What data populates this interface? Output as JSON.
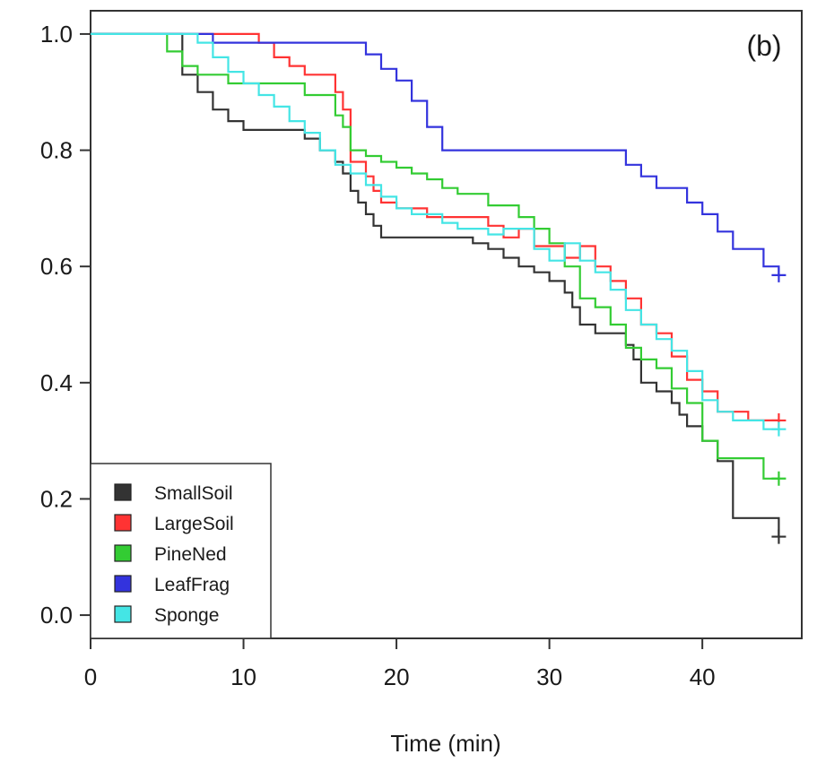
{
  "chart_data": {
    "type": "line",
    "subtype": "step",
    "annotation": "(b)",
    "xlabel": "Time (min)",
    "ylabel": "",
    "xlim": [
      0,
      46.5
    ],
    "ylim": [
      -0.04,
      1.04
    ],
    "xticks": [
      0,
      10,
      20,
      30,
      40
    ],
    "xtick_labels": [
      "0",
      "10",
      "20",
      "30",
      "40"
    ],
    "yticks": [
      0.0,
      0.2,
      0.4,
      0.6,
      0.8,
      1.0
    ],
    "ytick_labels": [
      "0.0",
      "0.2",
      "0.4",
      "0.6",
      "0.8",
      "1.0"
    ],
    "grid": false,
    "legend_position": "bottom-left",
    "series": [
      {
        "name": "SmallSoil",
        "color": "#333333",
        "points": [
          [
            0,
            1.0
          ],
          [
            6,
            1.0
          ],
          [
            6,
            0.93
          ],
          [
            7,
            0.93
          ],
          [
            7,
            0.9
          ],
          [
            8,
            0.9
          ],
          [
            8,
            0.87
          ],
          [
            9,
            0.87
          ],
          [
            9,
            0.85
          ],
          [
            10,
            0.85
          ],
          [
            10,
            0.835
          ],
          [
            14,
            0.835
          ],
          [
            14,
            0.82
          ],
          [
            15,
            0.82
          ],
          [
            15,
            0.8
          ],
          [
            16,
            0.8
          ],
          [
            16,
            0.78
          ],
          [
            16.5,
            0.78
          ],
          [
            16.5,
            0.76
          ],
          [
            17,
            0.76
          ],
          [
            17,
            0.73
          ],
          [
            17.5,
            0.73
          ],
          [
            17.5,
            0.71
          ],
          [
            18,
            0.71
          ],
          [
            18,
            0.69
          ],
          [
            18.5,
            0.69
          ],
          [
            18.5,
            0.67
          ],
          [
            19,
            0.67
          ],
          [
            19,
            0.65
          ],
          [
            25,
            0.65
          ],
          [
            25,
            0.64
          ],
          [
            26,
            0.64
          ],
          [
            26,
            0.63
          ],
          [
            27,
            0.63
          ],
          [
            27,
            0.615
          ],
          [
            28,
            0.615
          ],
          [
            28,
            0.6
          ],
          [
            29,
            0.6
          ],
          [
            29,
            0.59
          ],
          [
            30,
            0.59
          ],
          [
            30,
            0.575
          ],
          [
            31,
            0.575
          ],
          [
            31,
            0.555
          ],
          [
            31.5,
            0.555
          ],
          [
            31.5,
            0.53
          ],
          [
            32,
            0.53
          ],
          [
            32,
            0.5
          ],
          [
            33,
            0.5
          ],
          [
            33,
            0.485
          ],
          [
            35,
            0.485
          ],
          [
            35,
            0.465
          ],
          [
            35.5,
            0.465
          ],
          [
            35.5,
            0.44
          ],
          [
            36,
            0.44
          ],
          [
            36,
            0.4
          ],
          [
            37,
            0.4
          ],
          [
            37,
            0.385
          ],
          [
            38,
            0.385
          ],
          [
            38,
            0.365
          ],
          [
            38.5,
            0.365
          ],
          [
            38.5,
            0.345
          ],
          [
            39,
            0.345
          ],
          [
            39,
            0.325
          ],
          [
            40,
            0.325
          ],
          [
            40,
            0.3
          ],
          [
            41,
            0.3
          ],
          [
            41,
            0.265
          ],
          [
            42,
            0.265
          ],
          [
            42,
            0.167
          ],
          [
            45,
            0.167
          ],
          [
            45,
            0.135
          ]
        ],
        "censor": [
          [
            45,
            0.135
          ]
        ]
      },
      {
        "name": "LargeSoil",
        "color": "#ff3333",
        "points": [
          [
            0,
            1.0
          ],
          [
            11,
            1.0
          ],
          [
            11,
            0.985
          ],
          [
            12,
            0.985
          ],
          [
            12,
            0.96
          ],
          [
            13,
            0.96
          ],
          [
            13,
            0.945
          ],
          [
            14,
            0.945
          ],
          [
            14,
            0.93
          ],
          [
            16,
            0.93
          ],
          [
            16,
            0.9
          ],
          [
            16.5,
            0.9
          ],
          [
            16.5,
            0.87
          ],
          [
            17,
            0.87
          ],
          [
            17,
            0.78
          ],
          [
            18,
            0.78
          ],
          [
            18,
            0.755
          ],
          [
            18.5,
            0.755
          ],
          [
            18.5,
            0.73
          ],
          [
            19,
            0.73
          ],
          [
            19,
            0.71
          ],
          [
            20,
            0.71
          ],
          [
            20,
            0.7
          ],
          [
            22,
            0.7
          ],
          [
            22,
            0.685
          ],
          [
            26,
            0.685
          ],
          [
            26,
            0.67
          ],
          [
            27,
            0.67
          ],
          [
            27,
            0.65
          ],
          [
            28,
            0.65
          ],
          [
            28,
            0.665
          ],
          [
            29,
            0.665
          ],
          [
            29,
            0.635
          ],
          [
            31,
            0.635
          ],
          [
            31,
            0.615
          ],
          [
            32,
            0.615
          ],
          [
            32,
            0.635
          ],
          [
            33,
            0.635
          ],
          [
            33,
            0.6
          ],
          [
            34,
            0.6
          ],
          [
            34,
            0.575
          ],
          [
            35,
            0.575
          ],
          [
            35,
            0.545
          ],
          [
            36,
            0.545
          ],
          [
            36,
            0.5
          ],
          [
            37,
            0.5
          ],
          [
            37,
            0.485
          ],
          [
            38,
            0.485
          ],
          [
            38,
            0.445
          ],
          [
            39,
            0.445
          ],
          [
            39,
            0.405
          ],
          [
            40,
            0.405
          ],
          [
            40,
            0.385
          ],
          [
            41,
            0.385
          ],
          [
            41,
            0.35
          ],
          [
            43,
            0.35
          ],
          [
            43,
            0.335
          ],
          [
            45,
            0.335
          ]
        ],
        "censor": [
          [
            45,
            0.335
          ]
        ]
      },
      {
        "name": "PineNed",
        "color": "#33cc33",
        "points": [
          [
            0,
            1.0
          ],
          [
            5,
            1.0
          ],
          [
            5,
            0.97
          ],
          [
            6,
            0.97
          ],
          [
            6,
            0.945
          ],
          [
            7,
            0.945
          ],
          [
            7,
            0.93
          ],
          [
            9,
            0.93
          ],
          [
            9,
            0.915
          ],
          [
            14,
            0.915
          ],
          [
            14,
            0.895
          ],
          [
            16,
            0.895
          ],
          [
            16,
            0.86
          ],
          [
            16.5,
            0.86
          ],
          [
            16.5,
            0.84
          ],
          [
            17,
            0.84
          ],
          [
            17,
            0.8
          ],
          [
            18,
            0.8
          ],
          [
            18,
            0.79
          ],
          [
            19,
            0.79
          ],
          [
            19,
            0.78
          ],
          [
            20,
            0.78
          ],
          [
            20,
            0.77
          ],
          [
            21,
            0.77
          ],
          [
            21,
            0.76
          ],
          [
            22,
            0.76
          ],
          [
            22,
            0.75
          ],
          [
            23,
            0.75
          ],
          [
            23,
            0.735
          ],
          [
            24,
            0.735
          ],
          [
            24,
            0.725
          ],
          [
            26,
            0.725
          ],
          [
            26,
            0.705
          ],
          [
            28,
            0.705
          ],
          [
            28,
            0.685
          ],
          [
            29,
            0.685
          ],
          [
            29,
            0.665
          ],
          [
            30,
            0.665
          ],
          [
            30,
            0.64
          ],
          [
            31,
            0.64
          ],
          [
            31,
            0.6
          ],
          [
            32,
            0.6
          ],
          [
            32,
            0.545
          ],
          [
            33,
            0.545
          ],
          [
            33,
            0.53
          ],
          [
            34,
            0.53
          ],
          [
            34,
            0.5
          ],
          [
            35,
            0.5
          ],
          [
            35,
            0.46
          ],
          [
            36,
            0.46
          ],
          [
            36,
            0.44
          ],
          [
            37,
            0.44
          ],
          [
            37,
            0.425
          ],
          [
            38,
            0.425
          ],
          [
            38,
            0.39
          ],
          [
            39,
            0.39
          ],
          [
            39,
            0.365
          ],
          [
            40,
            0.365
          ],
          [
            40,
            0.3
          ],
          [
            41,
            0.3
          ],
          [
            41,
            0.27
          ],
          [
            44,
            0.27
          ],
          [
            44,
            0.235
          ],
          [
            45,
            0.235
          ]
        ],
        "censor": [
          [
            45,
            0.235
          ]
        ]
      },
      {
        "name": "LeafFrag",
        "color": "#3333dd",
        "points": [
          [
            0,
            1.0
          ],
          [
            8,
            1.0
          ],
          [
            8,
            0.985
          ],
          [
            18,
            0.985
          ],
          [
            18,
            0.965
          ],
          [
            19,
            0.965
          ],
          [
            19,
            0.94
          ],
          [
            20,
            0.94
          ],
          [
            20,
            0.92
          ],
          [
            21,
            0.92
          ],
          [
            21,
            0.885
          ],
          [
            22,
            0.885
          ],
          [
            22,
            0.84
          ],
          [
            23,
            0.84
          ],
          [
            23,
            0.8
          ],
          [
            35,
            0.8
          ],
          [
            35,
            0.775
          ],
          [
            36,
            0.775
          ],
          [
            36,
            0.755
          ],
          [
            37,
            0.755
          ],
          [
            37,
            0.735
          ],
          [
            39,
            0.735
          ],
          [
            39,
            0.71
          ],
          [
            40,
            0.71
          ],
          [
            40,
            0.69
          ],
          [
            41,
            0.69
          ],
          [
            41,
            0.66
          ],
          [
            42,
            0.66
          ],
          [
            42,
            0.63
          ],
          [
            44,
            0.63
          ],
          [
            44,
            0.6
          ],
          [
            45,
            0.6
          ],
          [
            45,
            0.585
          ]
        ],
        "censor": [
          [
            45,
            0.585
          ]
        ]
      },
      {
        "name": "Sponge",
        "color": "#44e5e5",
        "points": [
          [
            0,
            1.0
          ],
          [
            7,
            1.0
          ],
          [
            7,
            0.985
          ],
          [
            8,
            0.985
          ],
          [
            8,
            0.96
          ],
          [
            9,
            0.96
          ],
          [
            9,
            0.935
          ],
          [
            10,
            0.935
          ],
          [
            10,
            0.915
          ],
          [
            11,
            0.915
          ],
          [
            11,
            0.895
          ],
          [
            12,
            0.895
          ],
          [
            12,
            0.875
          ],
          [
            13,
            0.875
          ],
          [
            13,
            0.85
          ],
          [
            14,
            0.85
          ],
          [
            14,
            0.83
          ],
          [
            15,
            0.83
          ],
          [
            15,
            0.8
          ],
          [
            16,
            0.8
          ],
          [
            16,
            0.775
          ],
          [
            17,
            0.775
          ],
          [
            17,
            0.76
          ],
          [
            18,
            0.76
          ],
          [
            18,
            0.74
          ],
          [
            19,
            0.74
          ],
          [
            19,
            0.72
          ],
          [
            20,
            0.72
          ],
          [
            20,
            0.7
          ],
          [
            21,
            0.7
          ],
          [
            21,
            0.69
          ],
          [
            23,
            0.69
          ],
          [
            23,
            0.675
          ],
          [
            24,
            0.675
          ],
          [
            24,
            0.665
          ],
          [
            26,
            0.665
          ],
          [
            26,
            0.655
          ],
          [
            27,
            0.655
          ],
          [
            27,
            0.665
          ],
          [
            29,
            0.665
          ],
          [
            29,
            0.63
          ],
          [
            30,
            0.63
          ],
          [
            30,
            0.61
          ],
          [
            31,
            0.61
          ],
          [
            31,
            0.64
          ],
          [
            32,
            0.64
          ],
          [
            32,
            0.61
          ],
          [
            33,
            0.61
          ],
          [
            33,
            0.59
          ],
          [
            34,
            0.59
          ],
          [
            34,
            0.56
          ],
          [
            35,
            0.56
          ],
          [
            35,
            0.525
          ],
          [
            36,
            0.525
          ],
          [
            36,
            0.5
          ],
          [
            37,
            0.5
          ],
          [
            37,
            0.475
          ],
          [
            38,
            0.475
          ],
          [
            38,
            0.455
          ],
          [
            39,
            0.455
          ],
          [
            39,
            0.42
          ],
          [
            40,
            0.42
          ],
          [
            40,
            0.37
          ],
          [
            41,
            0.37
          ],
          [
            41,
            0.35
          ],
          [
            42,
            0.35
          ],
          [
            42,
            0.335
          ],
          [
            44,
            0.335
          ],
          [
            44,
            0.32
          ],
          [
            45,
            0.32
          ]
        ],
        "censor": [
          [
            45,
            0.32
          ]
        ]
      }
    ]
  }
}
